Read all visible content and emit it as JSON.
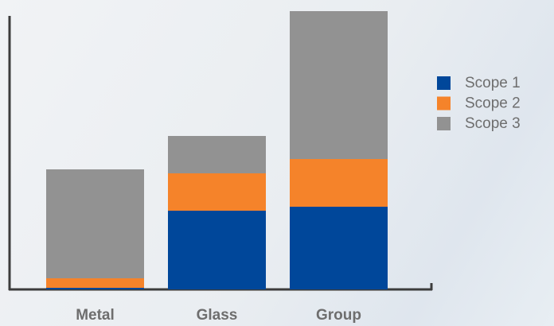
{
  "chart_data": {
    "type": "stacked-bar",
    "categories": [
      "Metal",
      "Glass",
      "Group"
    ],
    "series": [
      {
        "name": "Scope 1",
        "color": "#00479a",
        "values": [
          2,
          99,
          104
        ]
      },
      {
        "name": "Scope 2",
        "color": "#f5832a",
        "values": [
          12,
          47,
          60
        ]
      },
      {
        "name": "Scope 3",
        "color": "#929292",
        "values": [
          137,
          47,
          186
        ]
      }
    ],
    "ylim": [
      0,
      350
    ]
  }
}
